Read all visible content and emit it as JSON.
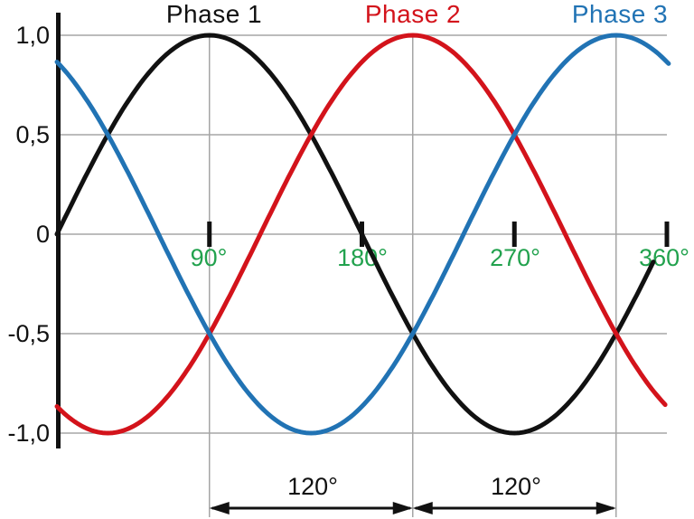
{
  "chart_data": {
    "type": "line",
    "title": "",
    "function": "sine",
    "x_unit": "degrees",
    "xlabel": "",
    "ylabel": "",
    "xlim": [
      0,
      360
    ],
    "ylim": [
      -1,
      1
    ],
    "grid": {
      "horizontal_at_values": [
        1.0,
        0.5,
        0,
        -0.5,
        -1.0
      ],
      "vertical_at_deg": [
        90,
        210,
        330
      ]
    },
    "series": [
      {
        "name": "Phase 1",
        "color": "#111111",
        "shift_deg": 0,
        "domain_deg": [
          0,
          352
        ],
        "peak_deg": 90,
        "amplitude": 1
      },
      {
        "name": "Phase 2",
        "color": "#d3131b",
        "shift_deg": -120,
        "domain_deg": [
          0,
          359
        ],
        "peak_deg": 210,
        "amplitude": 1
      },
      {
        "name": "Phase 3",
        "color": "#2173b4",
        "shift_deg": -240,
        "domain_deg": [
          0,
          361
        ],
        "peak_deg": 330,
        "amplitude": 1
      }
    ],
    "x_ticks": [
      {
        "deg": 90,
        "label": "90°"
      },
      {
        "deg": 180,
        "label": "180°"
      },
      {
        "deg": 270,
        "label": "270°"
      },
      {
        "deg": 360,
        "label": "360°"
      }
    ],
    "y_ticks": [
      {
        "value": 1.0,
        "label": "1,0"
      },
      {
        "value": 0.5,
        "label": "0,5"
      },
      {
        "value": 0,
        "label": "0"
      },
      {
        "value": -0.5,
        "label": "-0,5"
      },
      {
        "value": -1.0,
        "label": "-1,0"
      }
    ],
    "annotations": [
      {
        "type": "dimension-arrow",
        "label": "120°",
        "from_deg": 90,
        "to_deg": 210
      },
      {
        "type": "dimension-arrow",
        "label": "120°",
        "from_deg": 210,
        "to_deg": 330
      }
    ]
  },
  "colors": {
    "background": "#ffffff",
    "grid": "#a5a5a5",
    "axis": "#111111",
    "degree_labels": "#22a24e",
    "dimension": "#111111"
  }
}
